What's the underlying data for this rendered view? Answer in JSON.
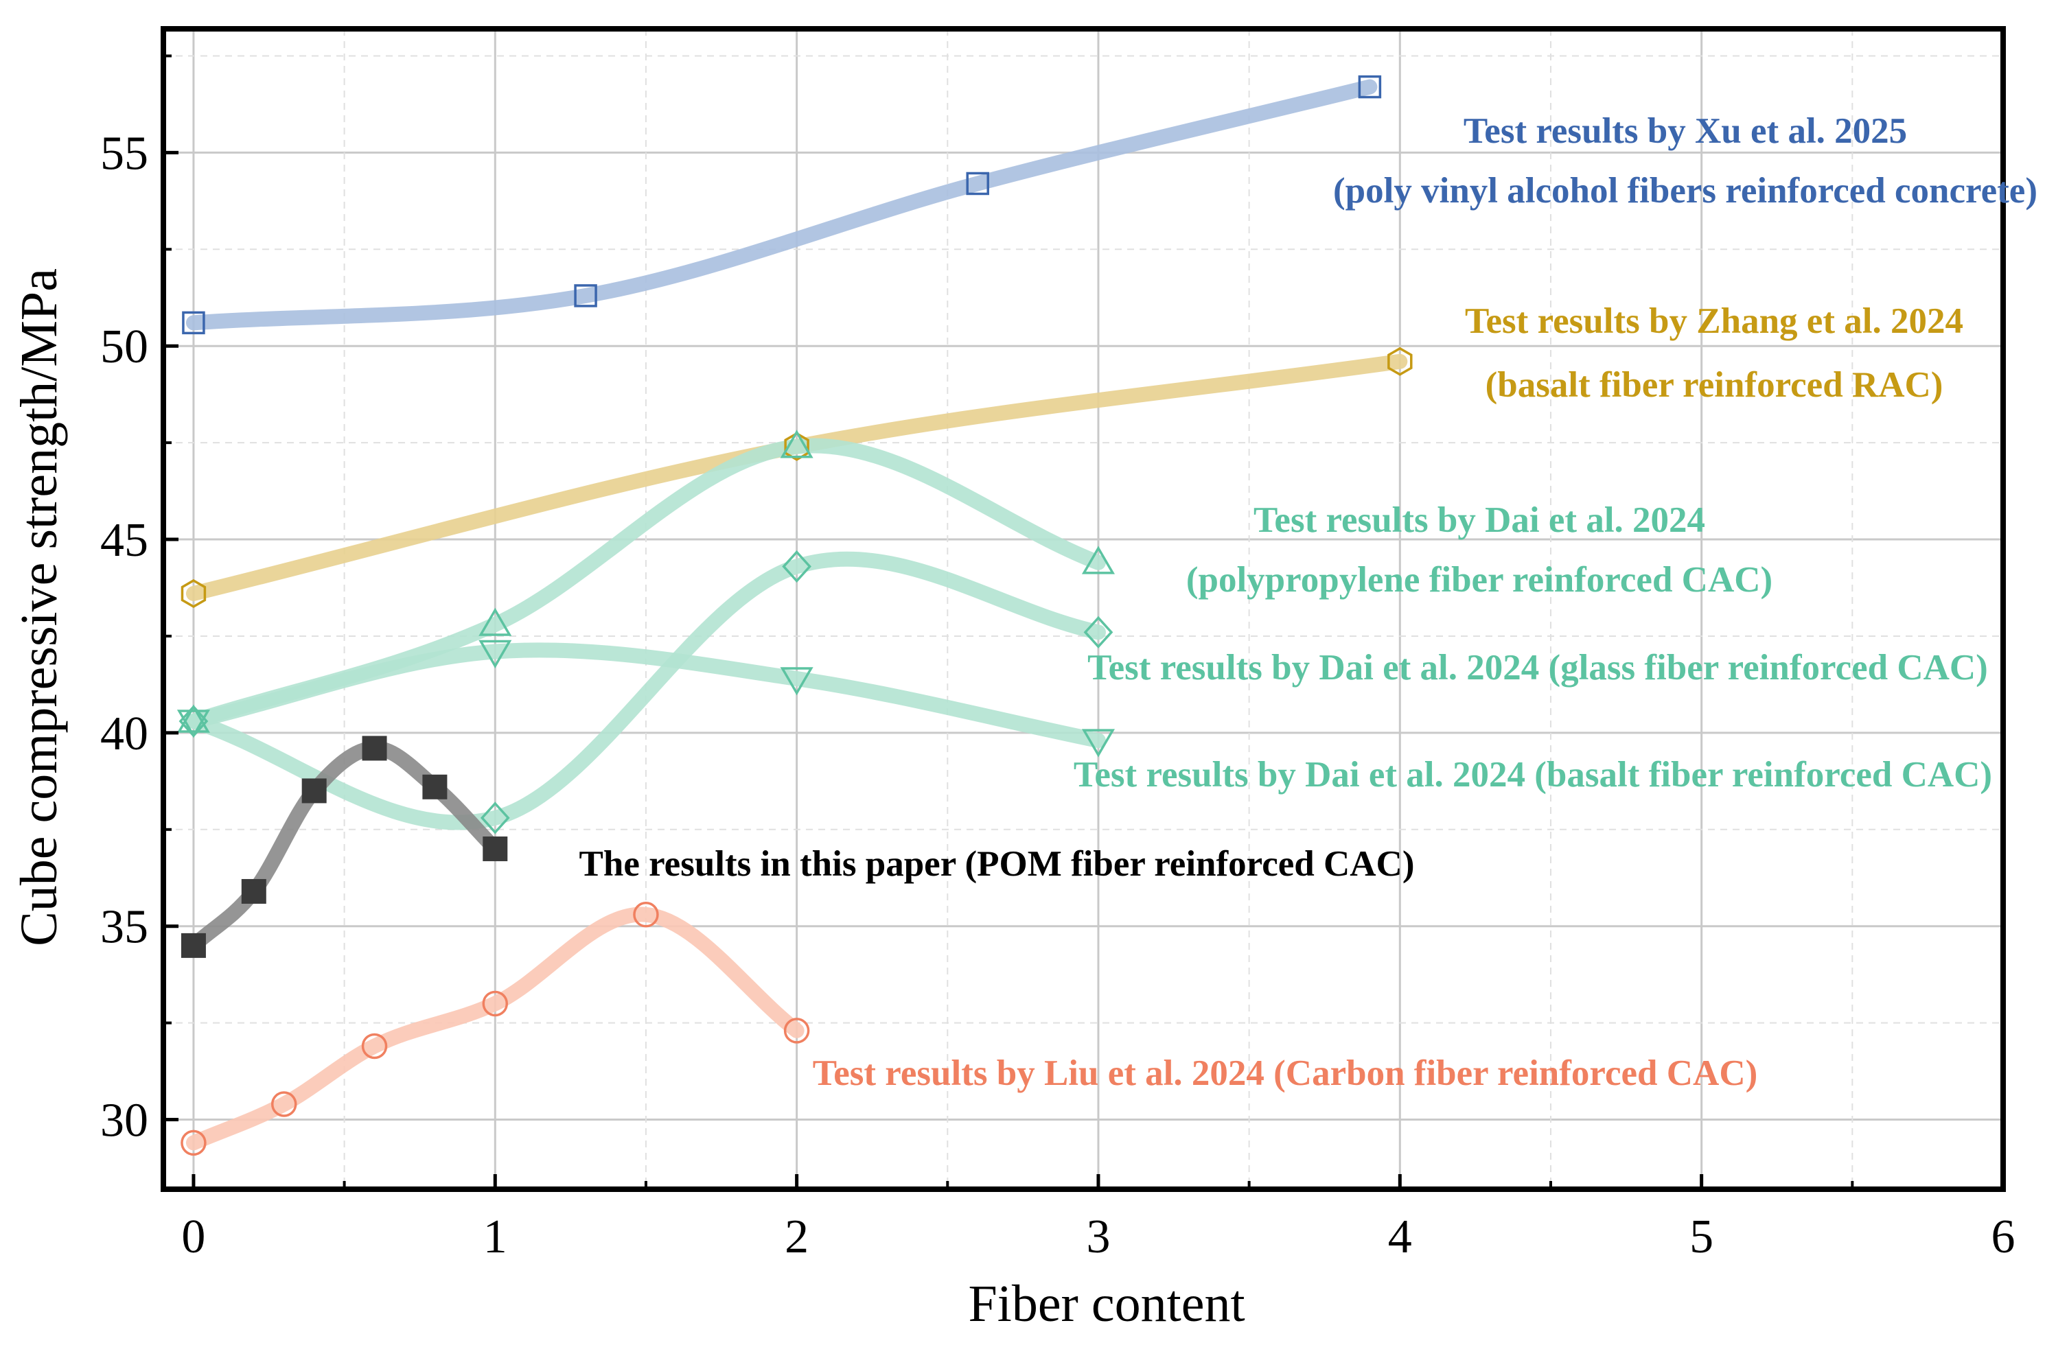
{
  "chart_data": {
    "type": "line",
    "title": "",
    "xlabel": "Fiber content",
    "ylabel": "Cube compressive strength/MPa",
    "xlim": [
      -0.1,
      6
    ],
    "ylim": [
      28.2,
      58.2
    ],
    "x_ticks": [
      0,
      1,
      2,
      3,
      4,
      5,
      6
    ],
    "y_ticks": [
      30,
      35,
      40,
      45,
      50,
      55
    ],
    "grid": true,
    "series": [
      {
        "name": "Xu et al. 2025 (poly vinyl alcohol fibers)",
        "marker": "square-open",
        "color": "#3b66ad",
        "line_color": "#a9bfdf",
        "x": [
          0,
          1.3,
          2.6,
          3.9
        ],
        "y": [
          50.6,
          51.3,
          54.2,
          56.7
        ]
      },
      {
        "name": "Zhang et al. 2024 (basalt fiber RAC)",
        "marker": "hexagon-open",
        "color": "#c69a14",
        "line_color": "#e8d08f",
        "x": [
          0,
          2,
          4
        ],
        "y": [
          43.6,
          47.4,
          49.6
        ]
      },
      {
        "name": "Dai et al. 2024 (polypropylene fiber)",
        "marker": "triangle-up-open",
        "color": "#5cc3a1",
        "line_color": "#b3e3d1",
        "x": [
          0,
          1,
          2,
          3
        ],
        "y": [
          40.3,
          42.8,
          47.4,
          44.4
        ]
      },
      {
        "name": "Dai et al. 2024 (glass fiber)",
        "marker": "diamond-open",
        "color": "#5cc3a1",
        "line_color": "#b3e3d1",
        "x": [
          0,
          1,
          2,
          3
        ],
        "y": [
          40.3,
          37.8,
          44.3,
          42.6
        ]
      },
      {
        "name": "Dai et al. 2024 (basalt fiber)",
        "marker": "triangle-down-open",
        "color": "#5cc3a1",
        "line_color": "#b3e3d1",
        "x": [
          0,
          1,
          2,
          3
        ],
        "y": [
          40.3,
          42.1,
          41.4,
          39.8
        ]
      },
      {
        "name": "This paper (POM fiber)",
        "marker": "square-filled",
        "color": "#3a3a3a",
        "line_color": "#8a8a8a",
        "x": [
          0,
          0.2,
          0.4,
          0.6,
          0.8,
          1
        ],
        "y": [
          34.5,
          35.9,
          38.5,
          39.6,
          38.6,
          37
        ]
      },
      {
        "name": "Liu et al. 2024 (Carbon fiber)",
        "marker": "circle-open",
        "color": "#f08060",
        "line_color": "#fbc6b4",
        "x": [
          0,
          0.3,
          0.6,
          1,
          1.5,
          2
        ],
        "y": [
          29.4,
          30.4,
          31.9,
          33,
          35.3,
          32.3
        ]
      }
    ],
    "annotations": [
      {
        "text": "Test results by Xu et al. 2025",
        "color": "#3b66ad"
      },
      {
        "text": "(poly vinyl alcohol fibers reinforced concrete)",
        "color": "#3b66ad"
      },
      {
        "text": "Test results by Zhang et al. 2024",
        "color": "#c69a14"
      },
      {
        "text": "(basalt fiber reinforced RAC)",
        "color": "#c69a14"
      },
      {
        "text": "Test results by Dai et al. 2024",
        "color": "#5cc3a1"
      },
      {
        "text": "(polypropylene fiber  reinforced CAC)",
        "color": "#5cc3a1"
      },
      {
        "text": "Test results by Dai et al. 2024 (glass fiber reinforced CAC)",
        "color": "#5cc3a1"
      },
      {
        "text": "Test results by Dai et al. 2024 (basalt fiber reinforced CAC)",
        "color": "#5cc3a1"
      },
      {
        "text": "The results in this paper (POM fiber reinforced CAC)",
        "color": "#000000"
      },
      {
        "text": "Test results by Liu et al. 2024 (Carbon fiber reinforced CAC)",
        "color": "#f08060"
      }
    ]
  }
}
